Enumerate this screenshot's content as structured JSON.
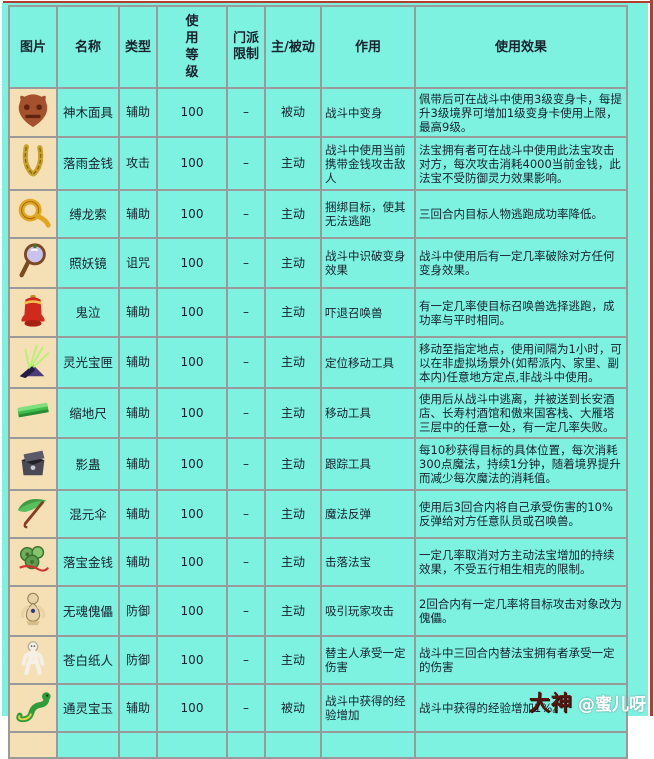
{
  "colors": {
    "background": "#7ef2e0",
    "icon_cell_background": "#f5dfb5",
    "grid_border": "#9a9a9a",
    "frame_red": "#b23b32",
    "watermark_brand_color": "#56150f",
    "watermark_handle_color": "#ffffff"
  },
  "watermark": {
    "brand": "大神",
    "handle": "@蜜儿呀"
  },
  "table": {
    "headers": [
      "图片",
      "名称",
      "类型",
      "使用等级",
      "门派限制",
      "主/被动",
      "作用",
      "使用效果"
    ],
    "rows": [
      {
        "icon": "wooden-mask-icon",
        "name": "神木面具",
        "type": "辅助",
        "level": "100",
        "sect": "–",
        "mode": "被动",
        "function": "战斗中变身",
        "effect": "佩带后可在战斗中使用3级变身卡，每提升3级境界可增加1级变身卡使用上限，最高9级。"
      },
      {
        "icon": "coin-necklace-icon",
        "name": "落雨金钱",
        "type": "攻击",
        "level": "100",
        "sect": "–",
        "mode": "主动",
        "function": "战斗中使用当前携带金钱攻击敌人",
        "effect": "法宝拥有者可在战斗中使用此法宝攻击对方，每次攻击消耗4000当前金钱，此法宝不受防御灵力效果影响。"
      },
      {
        "icon": "rope-coil-icon",
        "name": "缚龙索",
        "type": "辅助",
        "level": "100",
        "sect": "–",
        "mode": "主动",
        "function": "捆绑目标，使其无法逃跑",
        "effect": "三回合内目标人物逃跑成功率降低。"
      },
      {
        "icon": "demon-mirror-icon",
        "name": "照妖镜",
        "type": "诅咒",
        "level": "100",
        "sect": "–",
        "mode": "主动",
        "function": "战斗中识破变身效果",
        "effect": "战斗中使用后有一定几率破除对方任何变身效果。"
      },
      {
        "icon": "red-bell-icon",
        "name": "鬼泣",
        "type": "辅助",
        "level": "100",
        "sect": "–",
        "mode": "主动",
        "function": "吓退召唤兽",
        "effect": "有一定几率使目标召唤兽选择逃跑，成功率与平时相同。"
      },
      {
        "icon": "light-box-icon",
        "name": "灵光宝匣",
        "type": "辅助",
        "level": "100",
        "sect": "–",
        "mode": "主动",
        "function": "定位移动工具",
        "effect": "移动至指定地点，使用间隔为1小时，可以在非虚拟场景外(如帮派内、家里、副本内)任意地方定点,非战斗中使用。"
      },
      {
        "icon": "green-ruler-icon",
        "name": "缩地尺",
        "type": "辅助",
        "level": "100",
        "sect": "–",
        "mode": "主动",
        "function": "移动工具",
        "effect": "使用后从战斗中逃离，并被送到长安酒店、长寿村酒馆和傲来国客栈、大雁塔三层中的任意一处，有一定几率失败。"
      },
      {
        "icon": "shadow-chest-icon",
        "name": "影蛊",
        "type": "辅助",
        "level": "100",
        "sect": "–",
        "mode": "主动",
        "function": "跟踪工具",
        "effect": "每10秒获得目标的具体位置，每次消耗300点魔法，持续1分钟，随着境界提升而减少每次魔法的消耗值。"
      },
      {
        "icon": "green-umbrella-icon",
        "name": "混元伞",
        "type": "辅助",
        "level": "100",
        "sect": "–",
        "mode": "主动",
        "function": "魔法反弹",
        "effect": "使用后3回合内将自己承受伤害的10%反弹给对方任意队员或召唤兽。"
      },
      {
        "icon": "coin-string-icon",
        "name": "落宝金钱",
        "type": "辅助",
        "level": "100",
        "sect": "–",
        "mode": "主动",
        "function": "击落法宝",
        "effect": "一定几率取消对方主动法宝增加的持续效果，不受五行相生相克的限制。"
      },
      {
        "icon": "puppet-icon",
        "name": "无魂傀儡",
        "type": "防御",
        "level": "100",
        "sect": "–",
        "mode": "主动",
        "function": "吸引玩家攻击",
        "effect": "2回合内有一定几率将目标攻击对象改为傀儡。"
      },
      {
        "icon": "paper-man-icon",
        "name": "苍白纸人",
        "type": "防御",
        "level": "100",
        "sect": "–",
        "mode": "主动",
        "function": "替主人承受一定伤害",
        "effect": "战斗中三回合内替法宝拥有者承受一定的伤害"
      },
      {
        "icon": "jade-jewel-icon",
        "name": "通灵宝玉",
        "type": "辅助",
        "level": "100",
        "sect": "–",
        "mode": "被动",
        "function": "战斗中获得的经验增加",
        "effect": "战斗中获得的经验增加1%。"
      }
    ]
  }
}
